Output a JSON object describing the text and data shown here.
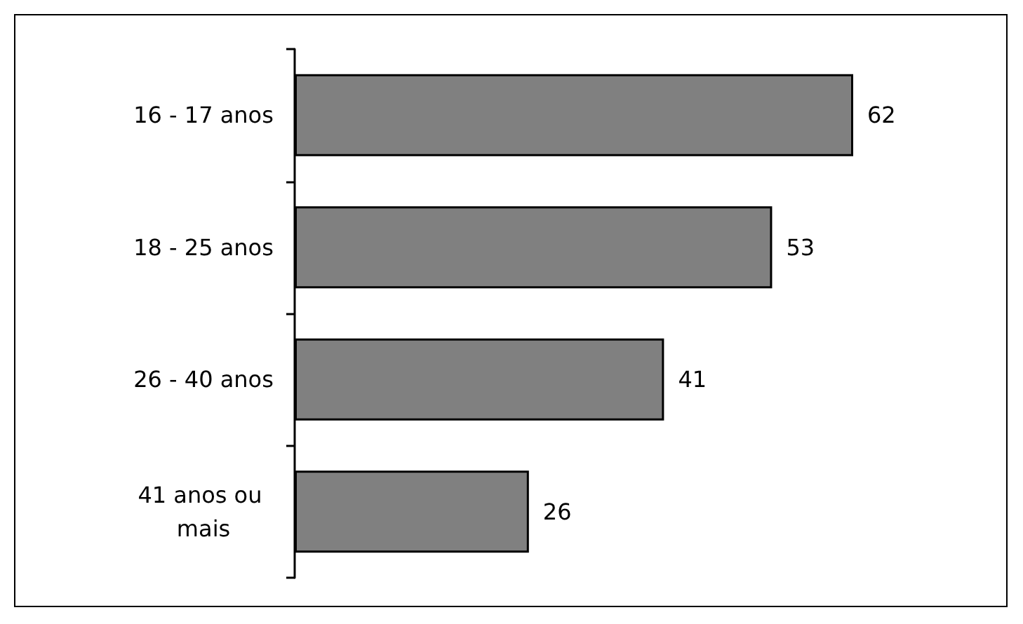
{
  "chart_data": {
    "type": "bar",
    "orientation": "horizontal",
    "tick_labels": "y",
    "categories": [
      "16 - 17 anos",
      "18 - 25 anos",
      "26 - 40 anos",
      "41 anos ou mais"
    ],
    "values": [
      62,
      53,
      41,
      26
    ],
    "color": "#808080",
    "data_labels": true
  }
}
